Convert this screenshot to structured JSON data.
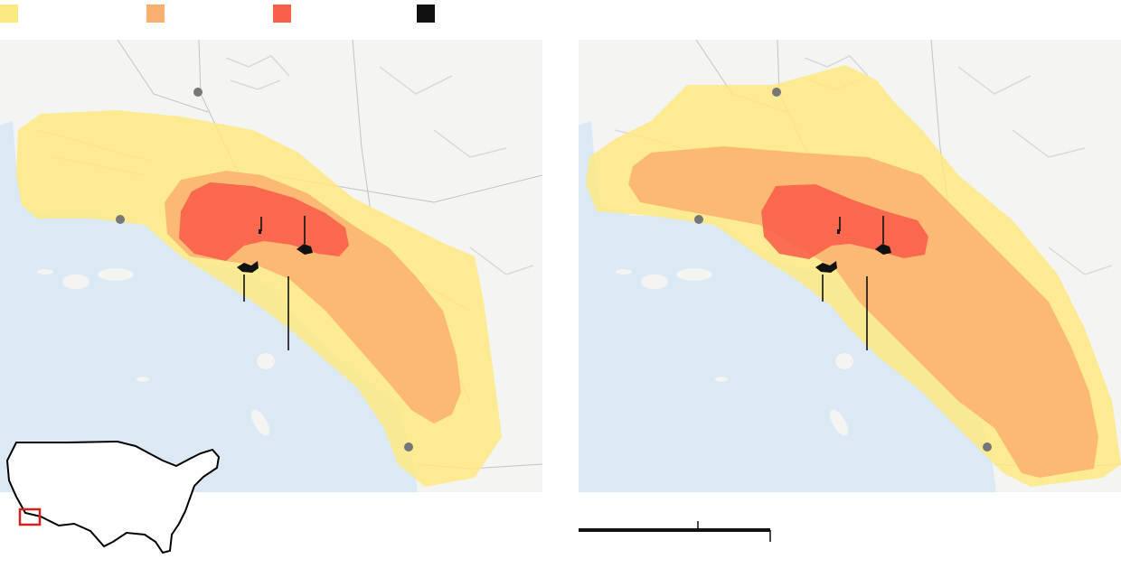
{
  "legend": {
    "items": [
      {
        "color": "#fde982",
        "label": ""
      },
      {
        "color": "#fbb06f",
        "label": ""
      },
      {
        "color": "#f9604a",
        "label": ""
      },
      {
        "color": "#111111",
        "label": ""
      }
    ]
  },
  "colors": {
    "ocean": "#dbe9f5",
    "land": "#f4f4f2",
    "yellow_zone": "#fde982",
    "orange_zone": "#fbb06f",
    "red_zone": "#f9604a",
    "fire": "#111111",
    "city_dot": "#777777",
    "inset_highlight": "#d32020"
  },
  "maps": [
    {
      "name": "left-map"
    },
    {
      "name": "right-map"
    }
  ],
  "scale": {
    "label": ""
  }
}
